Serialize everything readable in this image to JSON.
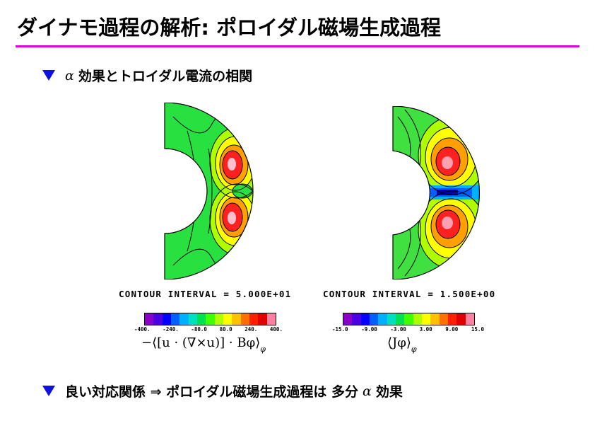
{
  "title": "ダイナモ過程の解析: ポロイダル磁場生成過程",
  "bullet1": {
    "greek": "α",
    "text": "効果とトロイダル電流の相関"
  },
  "left_panel": {
    "contour_label": "CONTOUR INTERVAL = 5.000E+01",
    "ticks": [
      "-400.",
      "-240.",
      "-80.0",
      "80.0",
      "240.",
      "400."
    ],
    "formula": "−⟨[u · (∇×u)] · Bφ⟩",
    "formula_sub": "φ",
    "colors": [
      "#8a00c8",
      "#4a00e0",
      "#0000ff",
      "#0060ff",
      "#00b0ff",
      "#00e0c0",
      "#00e050",
      "#40ff00",
      "#b0ff00",
      "#ffff00",
      "#ffc000",
      "#ff7000",
      "#ff2000",
      "#e00000",
      "#ff80a0"
    ]
  },
  "right_panel": {
    "contour_label": "CONTOUR INTERVAL = 1.500E+00",
    "ticks": [
      "-15.0",
      "-9.00",
      "-3.00",
      "3.00",
      "9.00",
      "15.0"
    ],
    "formula": "⟨Jφ⟩",
    "formula_sub": "φ",
    "colors": [
      "#8a00c8",
      "#4a00e0",
      "#0000ff",
      "#0060ff",
      "#00b0ff",
      "#00e0c0",
      "#00e050",
      "#40ff00",
      "#b0ff00",
      "#ffff00",
      "#ffc000",
      "#ff7000",
      "#ff2000",
      "#e00000",
      "#ff80a0"
    ]
  },
  "bullet2": {
    "text_before": "良い対応関係 ⇒ ポロイダル磁場生成過程は 多分",
    "greek": "α",
    "text_after": "効果"
  }
}
